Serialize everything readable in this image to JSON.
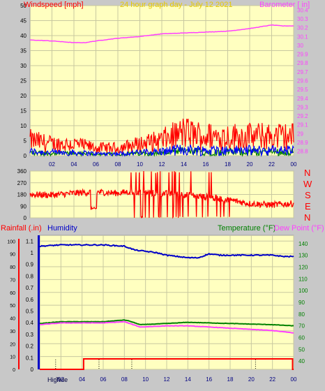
{
  "panel_top": {
    "title": "24 hour graph day - July 12 2021",
    "left_axis_label": "Windspeed [mph]",
    "right_axis_label": "Barometer [ in]"
  },
  "panel_mid": {
    "compass": [
      "N",
      "W",
      "S",
      "E",
      "N"
    ]
  },
  "panel_bottom": {
    "label_rain": "Rainfall (.in)",
    "label_hum": "Humidity",
    "label_temp": "Temperature (°F)",
    "label_dew": "Dew Point (°F)",
    "marker_high": "High",
    "marker_tide": "Tide"
  },
  "colors": {
    "plot_bg": "#ffffc0",
    "frame_bg": "#c8c8c8",
    "grid": "#c8c8a0",
    "wind_gust": "#ff0000",
    "wind_avg": "#0000ff",
    "wind_green": "#008000",
    "barometer": "#ff40ff",
    "direction": "#ff0000",
    "humidity": "#0000c8",
    "temperature": "#008000",
    "dewpoint": "#ff40ff",
    "rain": "#ff0000"
  },
  "chart_data": [
    {
      "type": "line",
      "name": "wind-barometer",
      "x_ticks": [
        "02",
        "04",
        "06",
        "08",
        "10",
        "12",
        "14",
        "16",
        "18",
        "20",
        "22",
        "00"
      ],
      "left_ticks": [
        "0",
        "5",
        "10",
        "15",
        "20",
        "25",
        "30",
        "35",
        "40",
        "45",
        "50"
      ],
      "right_ticks": [
        "28.8",
        "28.9",
        "29",
        "29.1",
        "29.2",
        "29.3",
        "29.4",
        "29.5",
        "29.6",
        "29.7",
        "29.8",
        "29.9",
        "30",
        "30.1",
        "30.2",
        "30.3",
        "30.4"
      ],
      "ylim_left": [
        0,
        50
      ],
      "ylim_right": [
        28.75,
        30.45
      ],
      "series": [
        {
          "key": "barometer",
          "x": [
            0,
            2,
            4,
            5,
            6,
            8,
            10,
            12,
            14,
            16,
            18,
            20,
            22,
            23,
            24
          ],
          "values": [
            30.06,
            30.05,
            30.03,
            30.03,
            30.05,
            30.08,
            30.1,
            30.13,
            30.14,
            30.15,
            30.16,
            30.19,
            30.23,
            30.22,
            30.22
          ]
        },
        {
          "key": "wind_gust_level",
          "x": [
            0,
            2,
            4,
            6,
            8,
            10,
            12,
            14,
            16,
            18,
            20,
            22,
            24
          ],
          "values": [
            4,
            3,
            3,
            2,
            2,
            3,
            4,
            6,
            5,
            5,
            5,
            5,
            5
          ]
        }
      ]
    },
    {
      "type": "line",
      "name": "wind-direction",
      "x_ticks": [
        "02",
        "04",
        "06",
        "08",
        "10",
        "12",
        "14",
        "16",
        "18",
        "20",
        "22",
        "00"
      ],
      "left_ticks": [
        "0",
        "90",
        "180",
        "270",
        "360"
      ],
      "ylim": [
        0,
        360
      ],
      "series": [
        {
          "key": "direction_baseline",
          "x": [
            0,
            2,
            4,
            6,
            8,
            9,
            14,
            18,
            20,
            22,
            24
          ],
          "values": [
            180,
            175,
            190,
            200,
            190,
            200,
            180,
            140,
            110,
            100,
            110
          ]
        }
      ]
    },
    {
      "type": "line",
      "name": "rain-humidity-temperature",
      "x_ticks": [
        "02",
        "04",
        "06",
        "08",
        "10",
        "12",
        "14",
        "16",
        "18",
        "20",
        "22",
        "00"
      ],
      "left_ticks": [
        "0",
        "0.1",
        "0.2",
        "0.3",
        "0.4",
        "0.5",
        "0.6",
        "0.7",
        "0.8",
        "0.9",
        "1",
        "1.1"
      ],
      "humidity_ticks": [
        "0",
        "10",
        "20",
        "30",
        "40",
        "50",
        "60",
        "70",
        "80",
        "90",
        "100"
      ],
      "right_ticks": [
        "40",
        "50",
        "60",
        "70",
        "80",
        "90",
        "100",
        "110",
        "120",
        "130",
        "140"
      ],
      "ylim_left": [
        0,
        1.15
      ],
      "ylim_hum": [
        0,
        104.5
      ],
      "ylim_right": [
        33.0,
        147.0
      ],
      "series": [
        {
          "key": "humidity",
          "x": [
            0,
            2,
            4,
            6,
            8,
            9,
            10,
            11,
            12,
            13,
            14,
            15,
            16,
            17,
            18,
            20,
            22,
            23,
            24
          ],
          "values": [
            96,
            97,
            97,
            97,
            96,
            93,
            92,
            91,
            89,
            88,
            87,
            87,
            90,
            89,
            89,
            89,
            89,
            88,
            88
          ]
        },
        {
          "key": "temperature",
          "x": [
            0,
            2,
            4,
            6,
            8,
            8.5,
            9.5,
            12,
            14,
            16,
            18,
            20,
            22,
            24
          ],
          "values": [
            72,
            73.5,
            73.5,
            73.5,
            75,
            74,
            71,
            72,
            73,
            72.5,
            72,
            71.5,
            71,
            70
          ]
        },
        {
          "key": "dewpoint",
          "x": [
            0,
            2,
            4,
            6,
            8,
            8.5,
            9.5,
            12,
            14,
            16,
            18,
            20,
            22,
            24
          ],
          "values": [
            71,
            72.5,
            72.5,
            72.5,
            73.5,
            72,
            69,
            70,
            70,
            69,
            68,
            67,
            66,
            64
          ]
        },
        {
          "key": "rain",
          "x": [
            0,
            4.15,
            4.15,
            23.9,
            23.9,
            24
          ],
          "values": [
            0,
            0,
            0.09,
            0.09,
            0,
            0
          ]
        }
      ],
      "tide_markers_hours": [
        1.5,
        5.6,
        8.7,
        20.4
      ]
    }
  ]
}
